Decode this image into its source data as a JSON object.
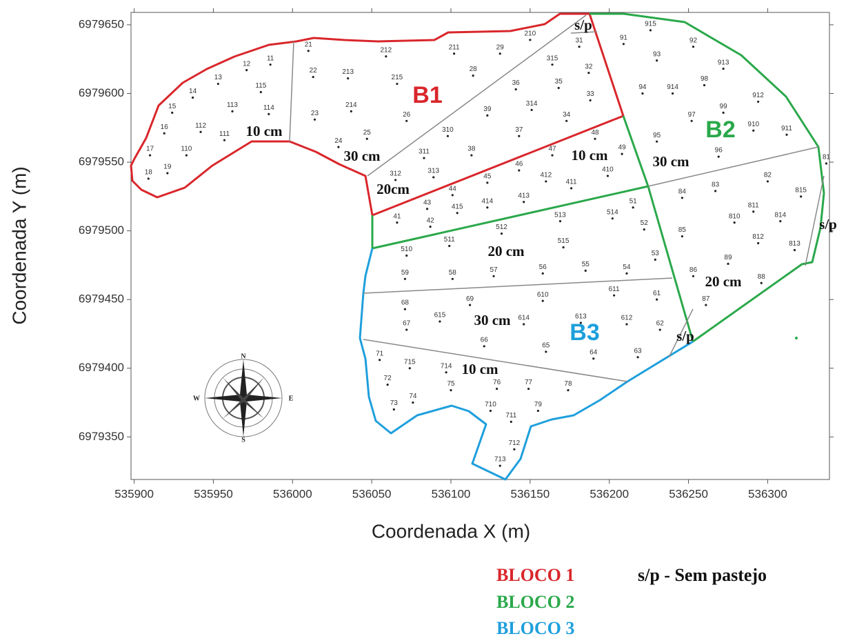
{
  "chart_data": {
    "type": "scatter",
    "x_label": "Coordenada X (m)",
    "y_label": "Coordenada Y (m)",
    "xlim": [
      535898,
      536339
    ],
    "ylim": [
      6979319,
      6979659
    ],
    "xticks": [
      535900,
      535950,
      536000,
      536050,
      536100,
      536150,
      536200,
      536250,
      536300
    ],
    "yticks": [
      6979350,
      6979400,
      6979450,
      6979500,
      6979550,
      6979600,
      6979650
    ],
    "point_color": "#222222",
    "point_labels": [
      "11",
      "12",
      "13",
      "14",
      "15",
      "16",
      "17",
      "18",
      "19",
      "110",
      "111",
      "112",
      "113",
      "114",
      "115",
      "21",
      "22",
      "23",
      "24",
      "25",
      "26",
      "28",
      "29",
      "210",
      "211",
      "212",
      "213",
      "214",
      "215",
      "31",
      "32",
      "33",
      "34",
      "35",
      "36",
      "37",
      "38",
      "39",
      "310",
      "311",
      "312",
      "313",
      "314",
      "315",
      "41",
      "42",
      "43",
      "44",
      "45",
      "46",
      "47",
      "48",
      "49",
      "410",
      "411",
      "412",
      "413",
      "414",
      "415",
      "51",
      "52",
      "53",
      "54",
      "55",
      "56",
      "57",
      "58",
      "59",
      "510",
      "511",
      "512",
      "513",
      "514",
      "515",
      "61",
      "62",
      "63",
      "64",
      "65",
      "66",
      "67",
      "68",
      "69",
      "610",
      "611",
      "612",
      "613",
      "614",
      "615",
      "71",
      "72",
      "73",
      "74",
      "75",
      "76",
      "77",
      "78",
      "79",
      "710",
      "711",
      "712",
      "713",
      "714",
      "715",
      "81",
      "82",
      "83",
      "84",
      "85",
      "86",
      "87",
      "88",
      "89",
      "810",
      "811",
      "812",
      "813",
      "814",
      "815",
      "91",
      "92",
      "93",
      "94",
      "95",
      "96",
      "97",
      "98",
      "99",
      "910",
      "911",
      "912",
      "913",
      "914",
      "915"
    ],
    "x": [
      535986,
      535971,
      535953,
      535937,
      535924,
      535919,
      535910,
      535909,
      535921,
      535933,
      535957,
      535942,
      535962,
      535985,
      535980,
      536010,
      536013,
      536014,
      536029,
      536047,
      536072,
      536114,
      536131,
      536150,
      536102,
      536059,
      536035,
      536037,
      536066,
      536181,
      536187,
      536188,
      536173,
      536168,
      536141,
      536143,
      536113,
      536123,
      536098,
      536083,
      536065,
      536089,
      536151,
      536164,
      536066,
      536087,
      536085,
      536101,
      536123,
      536143,
      536164,
      536191,
      536208,
      536199,
      536176,
      536160,
      536146,
      536123,
      536104,
      536215,
      536222,
      536229,
      536211,
      536185,
      536158,
      536127,
      536101,
      536071,
      536072,
      536099,
      536132,
      536169,
      536202,
      536171,
      536230,
      536232,
      536218,
      536190,
      536160,
      536121,
      536072,
      536071,
      536112,
      536158,
      536203,
      536211,
      536182,
      536146,
      536093,
      536055,
      536060,
      536064,
      536076,
      536100,
      536129,
      536149,
      536174,
      536155,
      536125,
      536138,
      536140,
      536131,
      536097,
      536074,
      536337,
      536300,
      536267,
      536246,
      536246,
      536253,
      536261,
      536296,
      536275,
      536279,
      536291,
      536294,
      536317,
      536308,
      536321,
      536209,
      536253,
      536230,
      536221,
      536230,
      536269,
      536252,
      536260,
      536272,
      536291,
      536312,
      536294,
      536272,
      536240,
      536226
    ],
    "y": [
      6979621,
      6979617,
      6979607,
      6979597,
      6979586,
      6979571,
      6979555,
      6979538,
      6979542,
      6979555,
      6979566,
      6979572,
      6979587,
      6979585,
      6979601,
      6979631,
      6979612,
      6979581,
      6979561,
      6979567,
      6979580,
      6979613,
      6979629,
      6979639,
      6979629,
      6979627,
      6979611,
      6979587,
      6979607,
      6979634,
      6979615,
      6979595,
      6979580,
      6979604,
      6979603,
      6979569,
      6979555,
      6979584,
      6979569,
      6979553,
      6979537,
      6979539,
      6979588,
      6979621,
      6979506,
      6979503,
      6979516,
      6979526,
      6979535,
      6979544,
      6979555,
      6979567,
      6979556,
      6979540,
      6979531,
      6979536,
      6979521,
      6979517,
      6979513,
      6979517,
      6979501,
      6979479,
      6979469,
      6979471,
      6979469,
      6979467,
      6979465,
      6979465,
      6979482,
      6979489,
      6979498,
      6979507,
      6979509,
      6979488,
      6979450,
      6979428,
      6979408,
      6979407,
      6979412,
      6979416,
      6979428,
      6979443,
      6979446,
      6979449,
      6979453,
      6979432,
      6979433,
      6979432,
      6979434,
      6979406,
      6979388,
      6979370,
      6979375,
      6979384,
      6979385,
      6979385,
      6979384,
      6979369,
      6979369,
      6979361,
      6979341,
      6979329,
      6979397,
      6979400,
      6979549,
      6979536,
      6979529,
      6979524,
      6979496,
      6979467,
      6979446,
      6979462,
      6979476,
      6979506,
      6979514,
      6979491,
      6979486,
      6979507,
      6979525,
      6979636,
      6979634,
      6979624,
      6979600,
      6979565,
      6979554,
      6979580,
      6979606,
      6979586,
      6979573,
      6979570,
      6979594,
      6979618,
      6979600,
      6979646
    ],
    "block_labels": [
      "B1",
      "B2",
      "B3"
    ],
    "zone_labels": [
      "10 cm",
      "30 cm",
      "20cm",
      "10 cm",
      "30 cm",
      "20 cm",
      "20 cm",
      "30 cm",
      "10 cm"
    ],
    "sp_labels": [
      "s/p",
      "s/p",
      "s/p"
    ],
    "compass": [
      "N",
      "S",
      "E",
      "W"
    ],
    "legend": [
      "BLOCO 1",
      "BLOCO 2",
      "BLOCO 3"
    ],
    "note": "s/p - Sem pastejo"
  }
}
